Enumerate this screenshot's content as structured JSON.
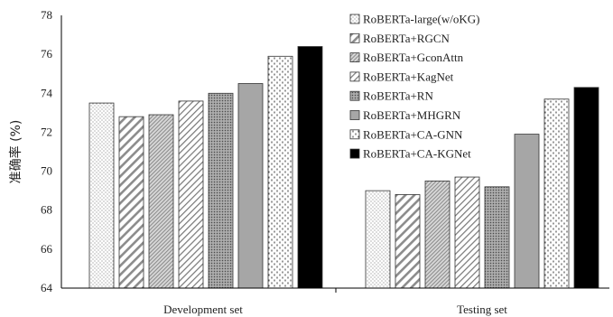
{
  "chart_data": {
    "type": "bar",
    "title": "",
    "xlabel": "",
    "ylabel": "准确率 (%)",
    "ylim": [
      64,
      78
    ],
    "yticks": [
      64,
      66,
      68,
      70,
      72,
      74,
      76,
      78
    ],
    "grid": false,
    "legend_position": "top-right",
    "categories": [
      "Development set",
      "Testing set"
    ],
    "series": [
      {
        "name": "RoBERTa-large(w/oKG)",
        "values": [
          73.5,
          69.0
        ],
        "pattern": "dots",
        "color": "#ffffff"
      },
      {
        "name": "RoBERTa+RGCN",
        "values": [
          72.8,
          68.8
        ],
        "pattern": "diagonal-wide",
        "color": "#ffffff"
      },
      {
        "name": "RoBERTa+GconAttn",
        "values": [
          72.9,
          69.5
        ],
        "pattern": "fine-hatch",
        "color": "#bbbbbb"
      },
      {
        "name": "RoBERTa+KagNet",
        "values": [
          73.6,
          69.7
        ],
        "pattern": "diagonal-thin",
        "color": "#ffffff"
      },
      {
        "name": "RoBERTa+RN",
        "values": [
          74.0,
          69.2
        ],
        "pattern": "dense-dots",
        "color": "#888888"
      },
      {
        "name": "RoBERTa+MHGRN",
        "values": [
          74.5,
          71.9
        ],
        "pattern": "solid",
        "color": "#a6a6a6"
      },
      {
        "name": "RoBERTa+CA-GNN",
        "values": [
          75.9,
          73.7
        ],
        "pattern": "dashes",
        "color": "#ffffff"
      },
      {
        "name": "RoBERTa+CA-KGNet",
        "values": [
          76.4,
          74.3
        ],
        "pattern": "solid",
        "color": "#000000"
      }
    ]
  }
}
